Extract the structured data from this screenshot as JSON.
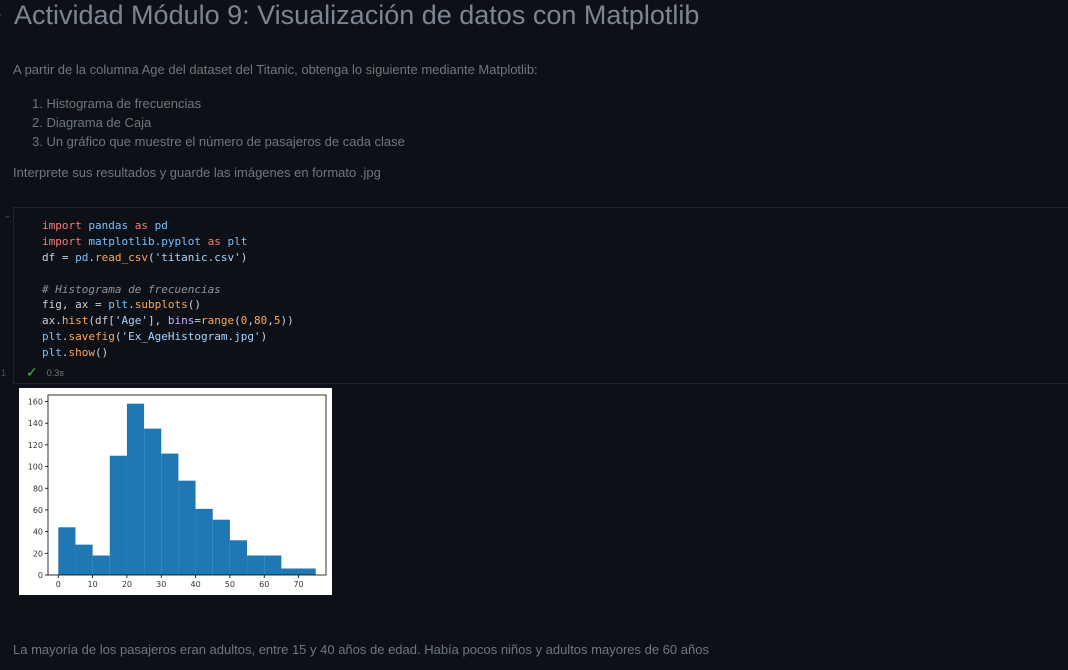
{
  "heading": {
    "title": "Actividad Módulo 9: Visualización de datos con Matplotlib"
  },
  "instructions": {
    "intro": "A partir de la columna Age del dataset del Titanic, obtenga lo siguiente mediante Matplotlib:",
    "items": [
      "1. Histograma de frecuencias",
      "2. Diagrama de Caja",
      "3. Un gráfico que muestre el número de pasajeros de cada clase"
    ],
    "outro": "Interprete sus resultados y guarde las imágenes en formato .jpg"
  },
  "code_cell": {
    "index": "1",
    "status_time": "0.3s",
    "lines": {
      "l1": {
        "a": "import",
        "b": "pandas",
        "c": "as",
        "d": "pd"
      },
      "l2": {
        "a": "import",
        "b": "matplotlib.pyplot",
        "c": "as",
        "d": "plt"
      },
      "l3": {
        "a": "df",
        "b": " = ",
        "c": "pd",
        "d": ".",
        "e": "read_csv",
        "f": "(",
        "g": "'titanic.csv'",
        "h": ")"
      },
      "l4": {
        "comment": "# Histograma de frecuencias"
      },
      "l5": {
        "a": "fig",
        "b": ", ",
        "c": "ax",
        "d": " = ",
        "e": "plt",
        "f": ".",
        "g": "subplots",
        "h": "()"
      },
      "l6": {
        "a": "ax",
        "b": ".",
        "c": "hist",
        "d": "(",
        "e": "df",
        "f": "[",
        "g": "'Age'",
        "h": "], ",
        "i": "bins",
        "j": "=",
        "k": "range",
        "l": "(",
        "m": "0",
        "n": ",",
        "o": "80",
        "p": ",",
        "q": "5",
        "r": "))"
      },
      "l7": {
        "a": "plt",
        "b": ".",
        "c": "savefig",
        "d": "(",
        "e": "'Ex_AgeHistogram.jpg'",
        "f": ")"
      },
      "l8": {
        "a": "plt",
        "b": ".",
        "c": "show",
        "d": "()"
      }
    }
  },
  "colors": {
    "background": "#0d1117",
    "bar_fill": "#1f77b4",
    "success": "#3fb950"
  },
  "chart_data": {
    "type": "bar",
    "bin_edges": [
      0,
      5,
      10,
      15,
      20,
      25,
      30,
      35,
      40,
      45,
      50,
      55,
      60,
      65,
      70,
      75
    ],
    "values": [
      44,
      28,
      18,
      110,
      158,
      135,
      112,
      87,
      61,
      51,
      32,
      18,
      18,
      6,
      6
    ],
    "xlim": [
      -3,
      78
    ],
    "ylim": [
      0,
      166
    ],
    "x_ticks": [
      "0",
      "10",
      "20",
      "30",
      "40",
      "50",
      "60",
      "70"
    ],
    "y_ticks": [
      "0",
      "20",
      "40",
      "60",
      "80",
      "100",
      "120",
      "140",
      "160"
    ],
    "title": "",
    "xlabel": "",
    "ylabel": "",
    "grid": false
  },
  "interpretation": "La mayoría de los pasajeros eran adultos, entre 15 y 40 años de edad. Había pocos niños y adultos mayores de 60 años"
}
